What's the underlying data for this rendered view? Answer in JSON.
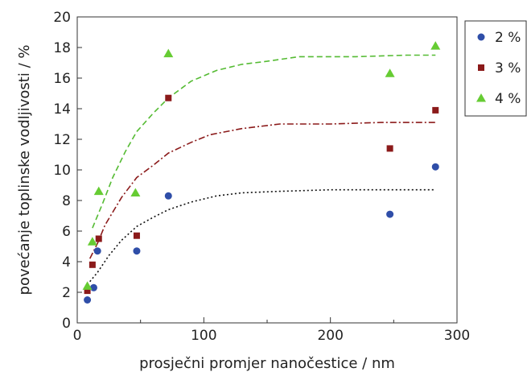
{
  "chart_data": {
    "type": "scatter",
    "xlabel": "prosječni promjer nanočestice / nm",
    "ylabel": "povećanje toplinske vodljivosti / %",
    "xlim": [
      0,
      300
    ],
    "ylim": [
      0,
      20
    ],
    "x_ticks": [
      "0",
      "100",
      "200",
      "300"
    ],
    "y_ticks": [
      "0",
      "2",
      "4",
      "6",
      "8",
      "10",
      "12",
      "14",
      "16",
      "18",
      "20"
    ],
    "grid": false,
    "legend_position": "right, outside plot, top",
    "series": [
      {
        "name": "2 %",
        "marker": "circle",
        "color": "#2f4ea8",
        "trend_style": "dotted",
        "trend_color": "#111111",
        "points": [
          [
            8,
            1.5
          ],
          [
            13,
            2.3
          ],
          [
            16,
            4.7
          ],
          [
            47,
            4.7
          ],
          [
            72,
            8.3
          ],
          [
            247,
            7.1
          ],
          [
            283,
            10.2
          ]
        ],
        "trend": [
          [
            10,
            2.7
          ],
          [
            16,
            3.3
          ],
          [
            25,
            4.4
          ],
          [
            35,
            5.4
          ],
          [
            47,
            6.3
          ],
          [
            60,
            6.9
          ],
          [
            72,
            7.4
          ],
          [
            90,
            7.9
          ],
          [
            110,
            8.3
          ],
          [
            130,
            8.5
          ],
          [
            160,
            8.6
          ],
          [
            200,
            8.7
          ],
          [
            240,
            8.7
          ],
          [
            283,
            8.7
          ]
        ]
      },
      {
        "name": "3 %",
        "marker": "square",
        "color": "#8b1a1a",
        "trend_style": "dashdot",
        "trend_color": "#8b1a1a",
        "points": [
          [
            8,
            2.1
          ],
          [
            12,
            3.8
          ],
          [
            17,
            5.5
          ],
          [
            47,
            5.7
          ],
          [
            72,
            14.7
          ],
          [
            247,
            11.4
          ],
          [
            283,
            13.9
          ]
        ],
        "trend": [
          [
            10,
            4.2
          ],
          [
            16,
            5.2
          ],
          [
            22,
            6.4
          ],
          [
            35,
            8.2
          ],
          [
            47,
            9.5
          ],
          [
            60,
            10.3
          ],
          [
            72,
            11.1
          ],
          [
            90,
            11.8
          ],
          [
            105,
            12.3
          ],
          [
            130,
            12.7
          ],
          [
            160,
            13.0
          ],
          [
            200,
            13.0
          ],
          [
            240,
            13.1
          ],
          [
            283,
            13.1
          ]
        ]
      },
      {
        "name": "4 %",
        "marker": "triangle",
        "color": "#66cc33",
        "trend_style": "dashed",
        "trend_color": "#55bb33",
        "points": [
          [
            8,
            2.4
          ],
          [
            12,
            5.3
          ],
          [
            17,
            8.6
          ],
          [
            46,
            8.5
          ],
          [
            72,
            17.6
          ],
          [
            247,
            16.3
          ],
          [
            283,
            18.1
          ]
        ],
        "trend": [
          [
            12,
            6.2
          ],
          [
            20,
            7.8
          ],
          [
            28,
            9.5
          ],
          [
            38,
            11.2
          ],
          [
            47,
            12.5
          ],
          [
            60,
            13.7
          ],
          [
            72,
            14.7
          ],
          [
            90,
            15.8
          ],
          [
            110,
            16.5
          ],
          [
            130,
            16.9
          ],
          [
            150,
            17.1
          ],
          [
            175,
            17.4
          ],
          [
            220,
            17.4
          ],
          [
            260,
            17.5
          ],
          [
            283,
            17.5
          ]
        ]
      }
    ]
  }
}
